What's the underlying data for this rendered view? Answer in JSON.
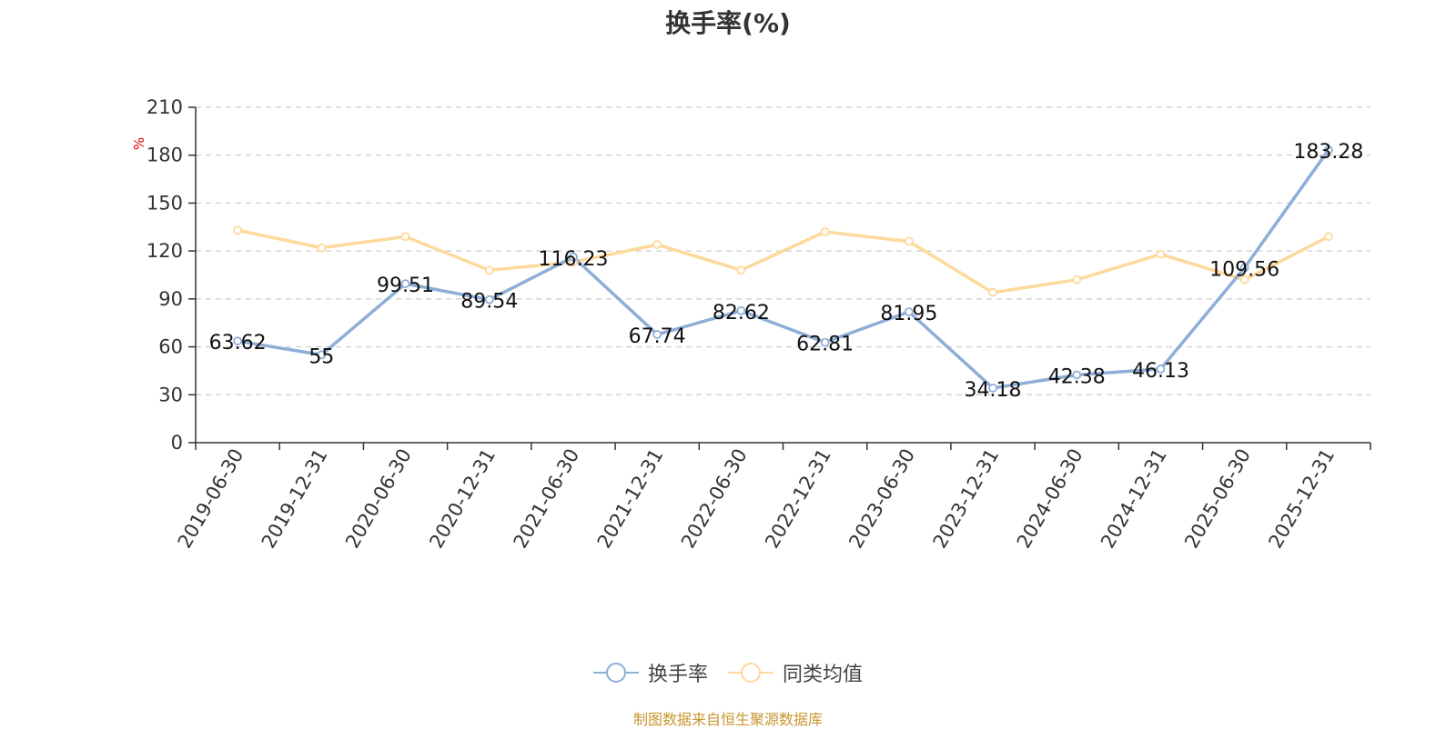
{
  "chart_data": {
    "type": "line",
    "title": "换手率(%)",
    "ylabel": "%",
    "xlabel": "",
    "ylim": [
      0,
      210
    ],
    "yticks": [
      0,
      30,
      60,
      90,
      120,
      150,
      180,
      210
    ],
    "grid": true,
    "legend_position": "bottom-center",
    "categories": [
      "2019-06-30",
      "2019-12-31",
      "2020-06-30",
      "2020-12-31",
      "2021-06-30",
      "2021-12-31",
      "2022-06-30",
      "2022-12-31",
      "2023-06-30",
      "2023-12-31",
      "2024-06-30",
      "2024-12-31",
      "2025-06-30",
      "2025-12-31"
    ],
    "series": [
      {
        "name": "换手率",
        "color": "#8eaed8",
        "labeled": true,
        "values": [
          63.62,
          55,
          99.51,
          89.54,
          116.23,
          67.74,
          82.62,
          62.81,
          81.95,
          34.18,
          42.38,
          46.13,
          109.56,
          183.28
        ],
        "labels": [
          "63.62",
          "55",
          "99.51",
          "89.54",
          "116.23",
          "67.74",
          "82.62",
          "62.81",
          "81.95",
          "34.18",
          "42.38",
          "46.13",
          "109.56",
          "183.28"
        ]
      },
      {
        "name": "同类均值",
        "color": "#fdd99b",
        "labeled": false,
        "values": [
          133,
          122,
          129,
          108,
          113,
          124,
          108,
          132,
          126,
          94,
          102,
          118,
          102,
          129
        ]
      }
    ]
  },
  "source_text": "制图数据来自恒生聚源数据库"
}
